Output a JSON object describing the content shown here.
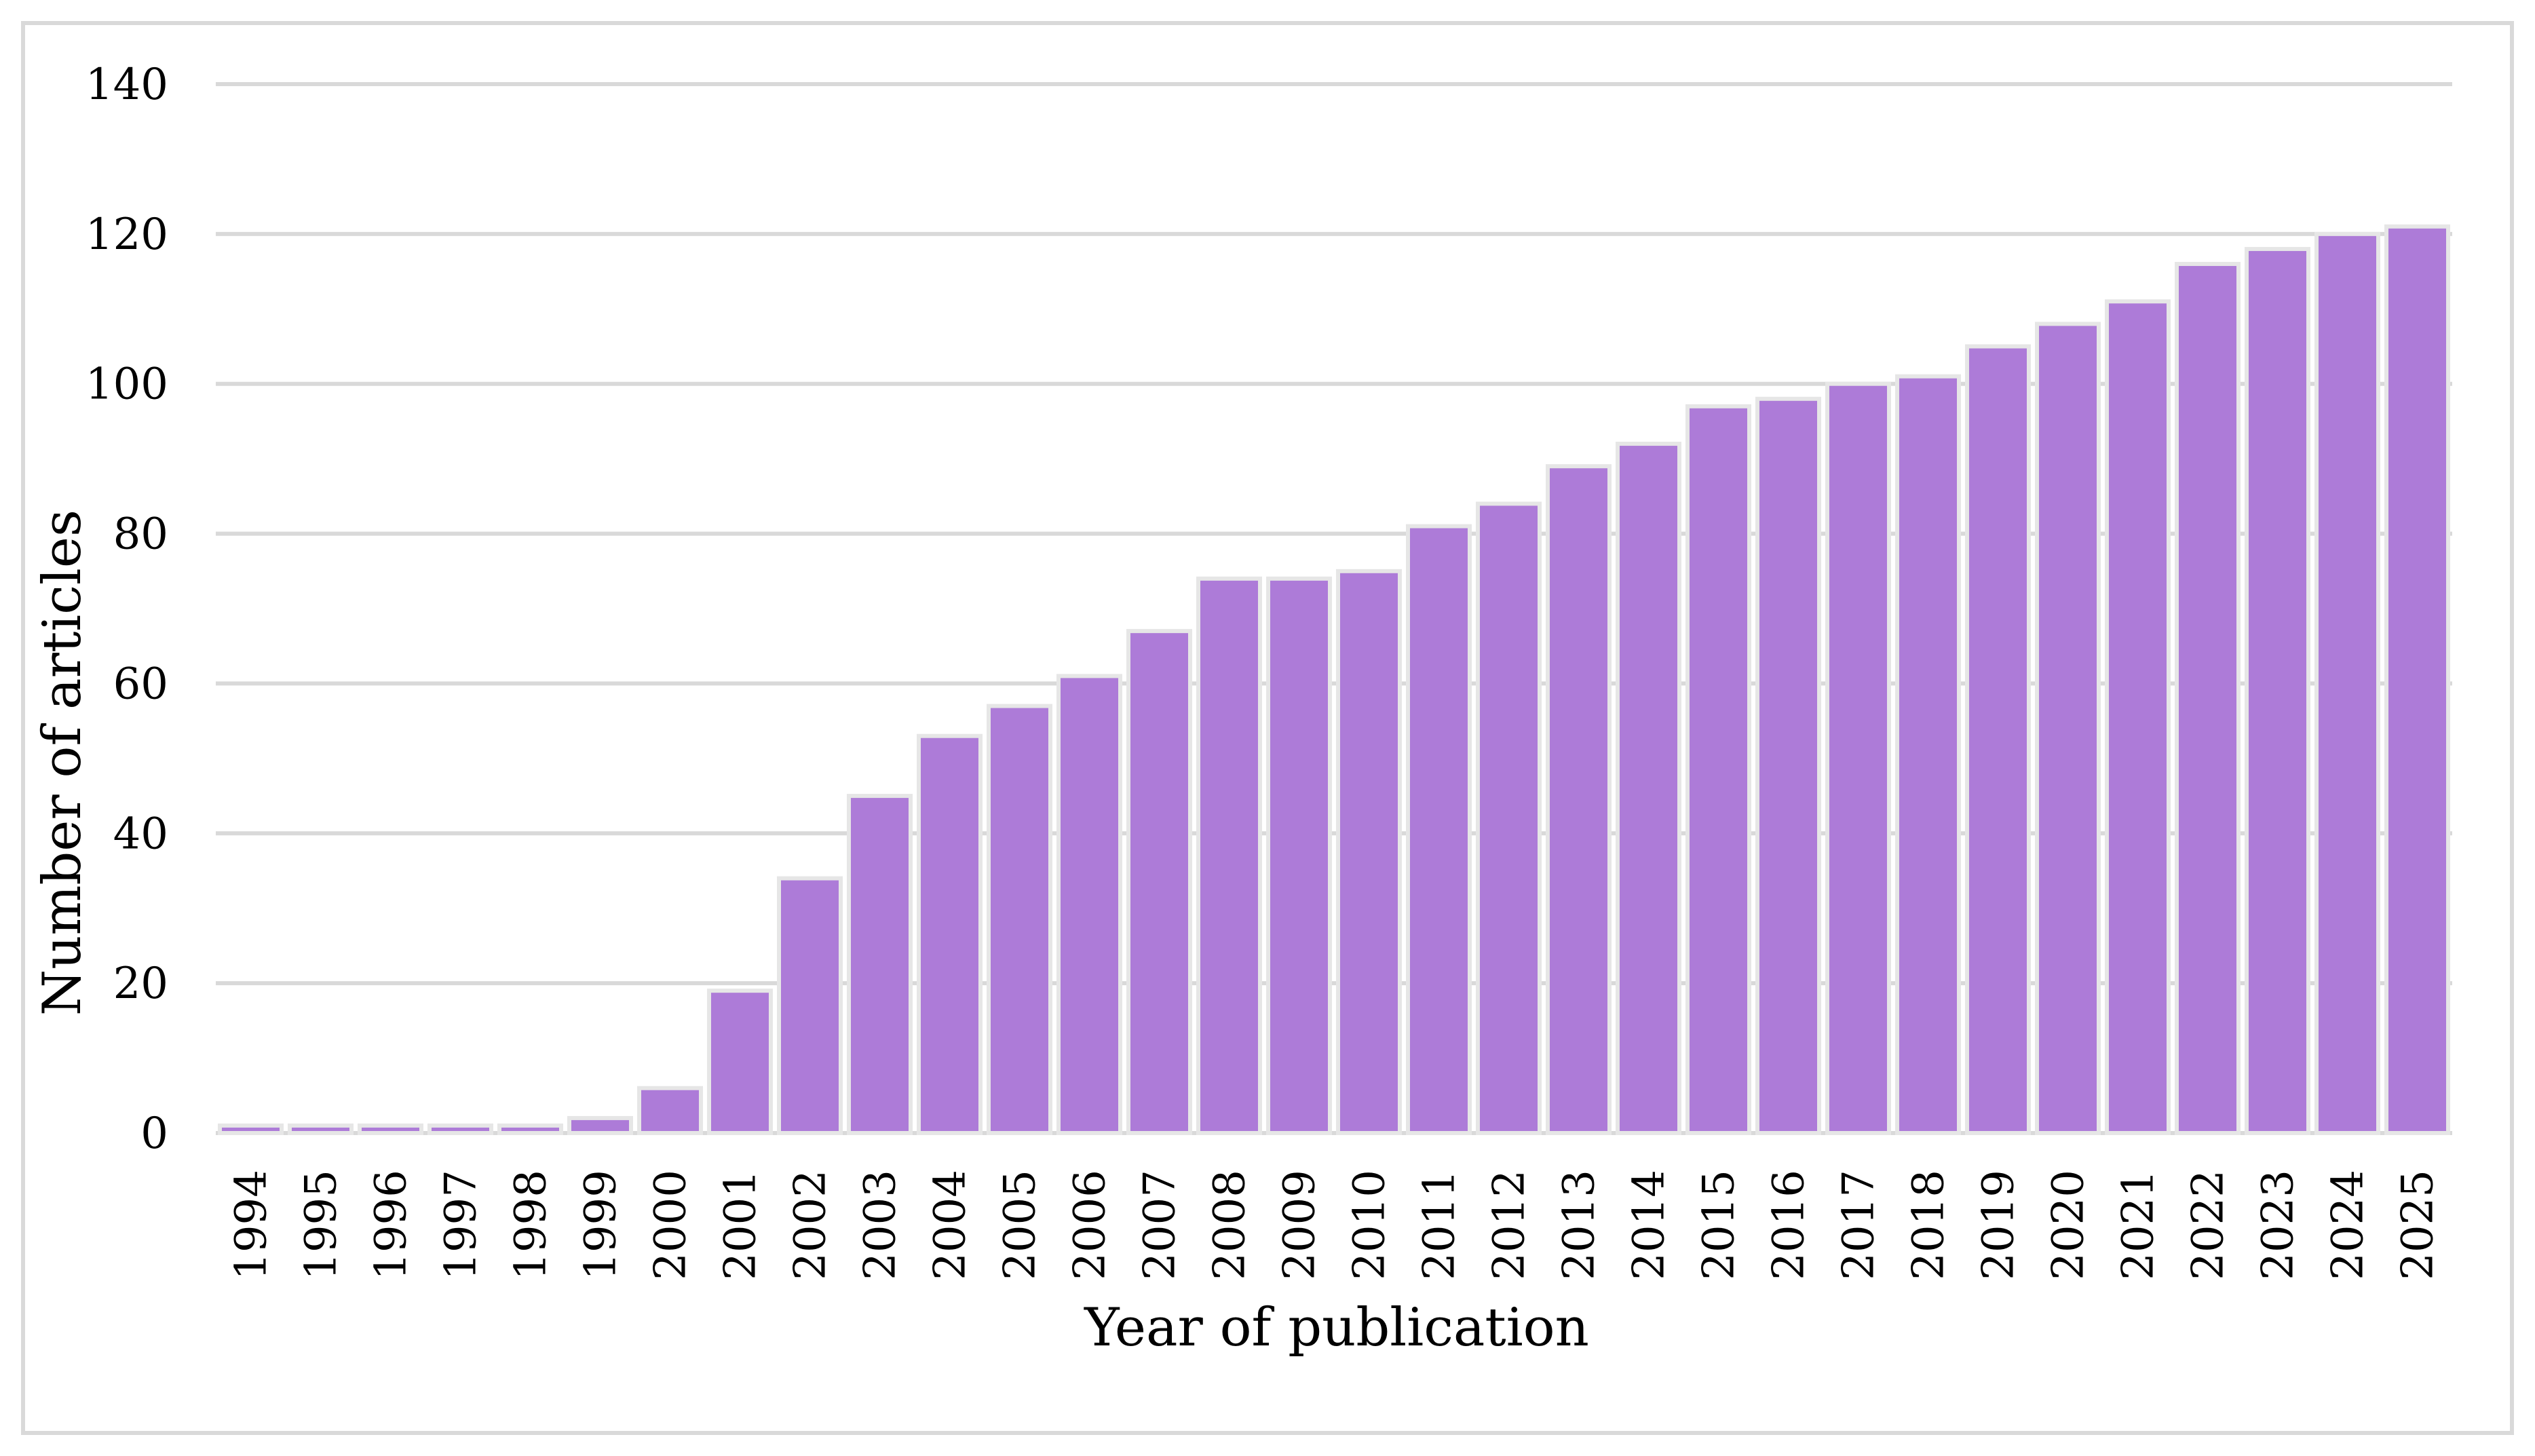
{
  "chart_data": {
    "type": "bar",
    "title": "",
    "xlabel": "Year of publication",
    "ylabel": "Number of articles",
    "ylim": [
      0,
      140
    ],
    "yticks": [
      0,
      20,
      40,
      60,
      80,
      100,
      120,
      140
    ],
    "grid": true,
    "categories": [
      "1994",
      "1995",
      "1996",
      "1997",
      "1998",
      "1999",
      "2000",
      "2001",
      "2002",
      "2003",
      "2004",
      "2005",
      "2006",
      "2007",
      "2008",
      "2009",
      "2010",
      "2011",
      "2012",
      "2013",
      "2014",
      "2015",
      "2016",
      "2017",
      "2018",
      "2019",
      "2020",
      "2021",
      "2022",
      "2023",
      "2024",
      "2025"
    ],
    "values": [
      1,
      1,
      1,
      1,
      1,
      2,
      6,
      19,
      34,
      45,
      53,
      57,
      61,
      67,
      74,
      74,
      75,
      81,
      84,
      89,
      92,
      97,
      98,
      100,
      101,
      105,
      108,
      111,
      116,
      118,
      120,
      121
    ],
    "colors": {
      "bar": "#ad7bd8",
      "bar_outline": "#e6e6e6",
      "gridline": "#d9d9d9",
      "frame": "#d9d9d9"
    }
  }
}
